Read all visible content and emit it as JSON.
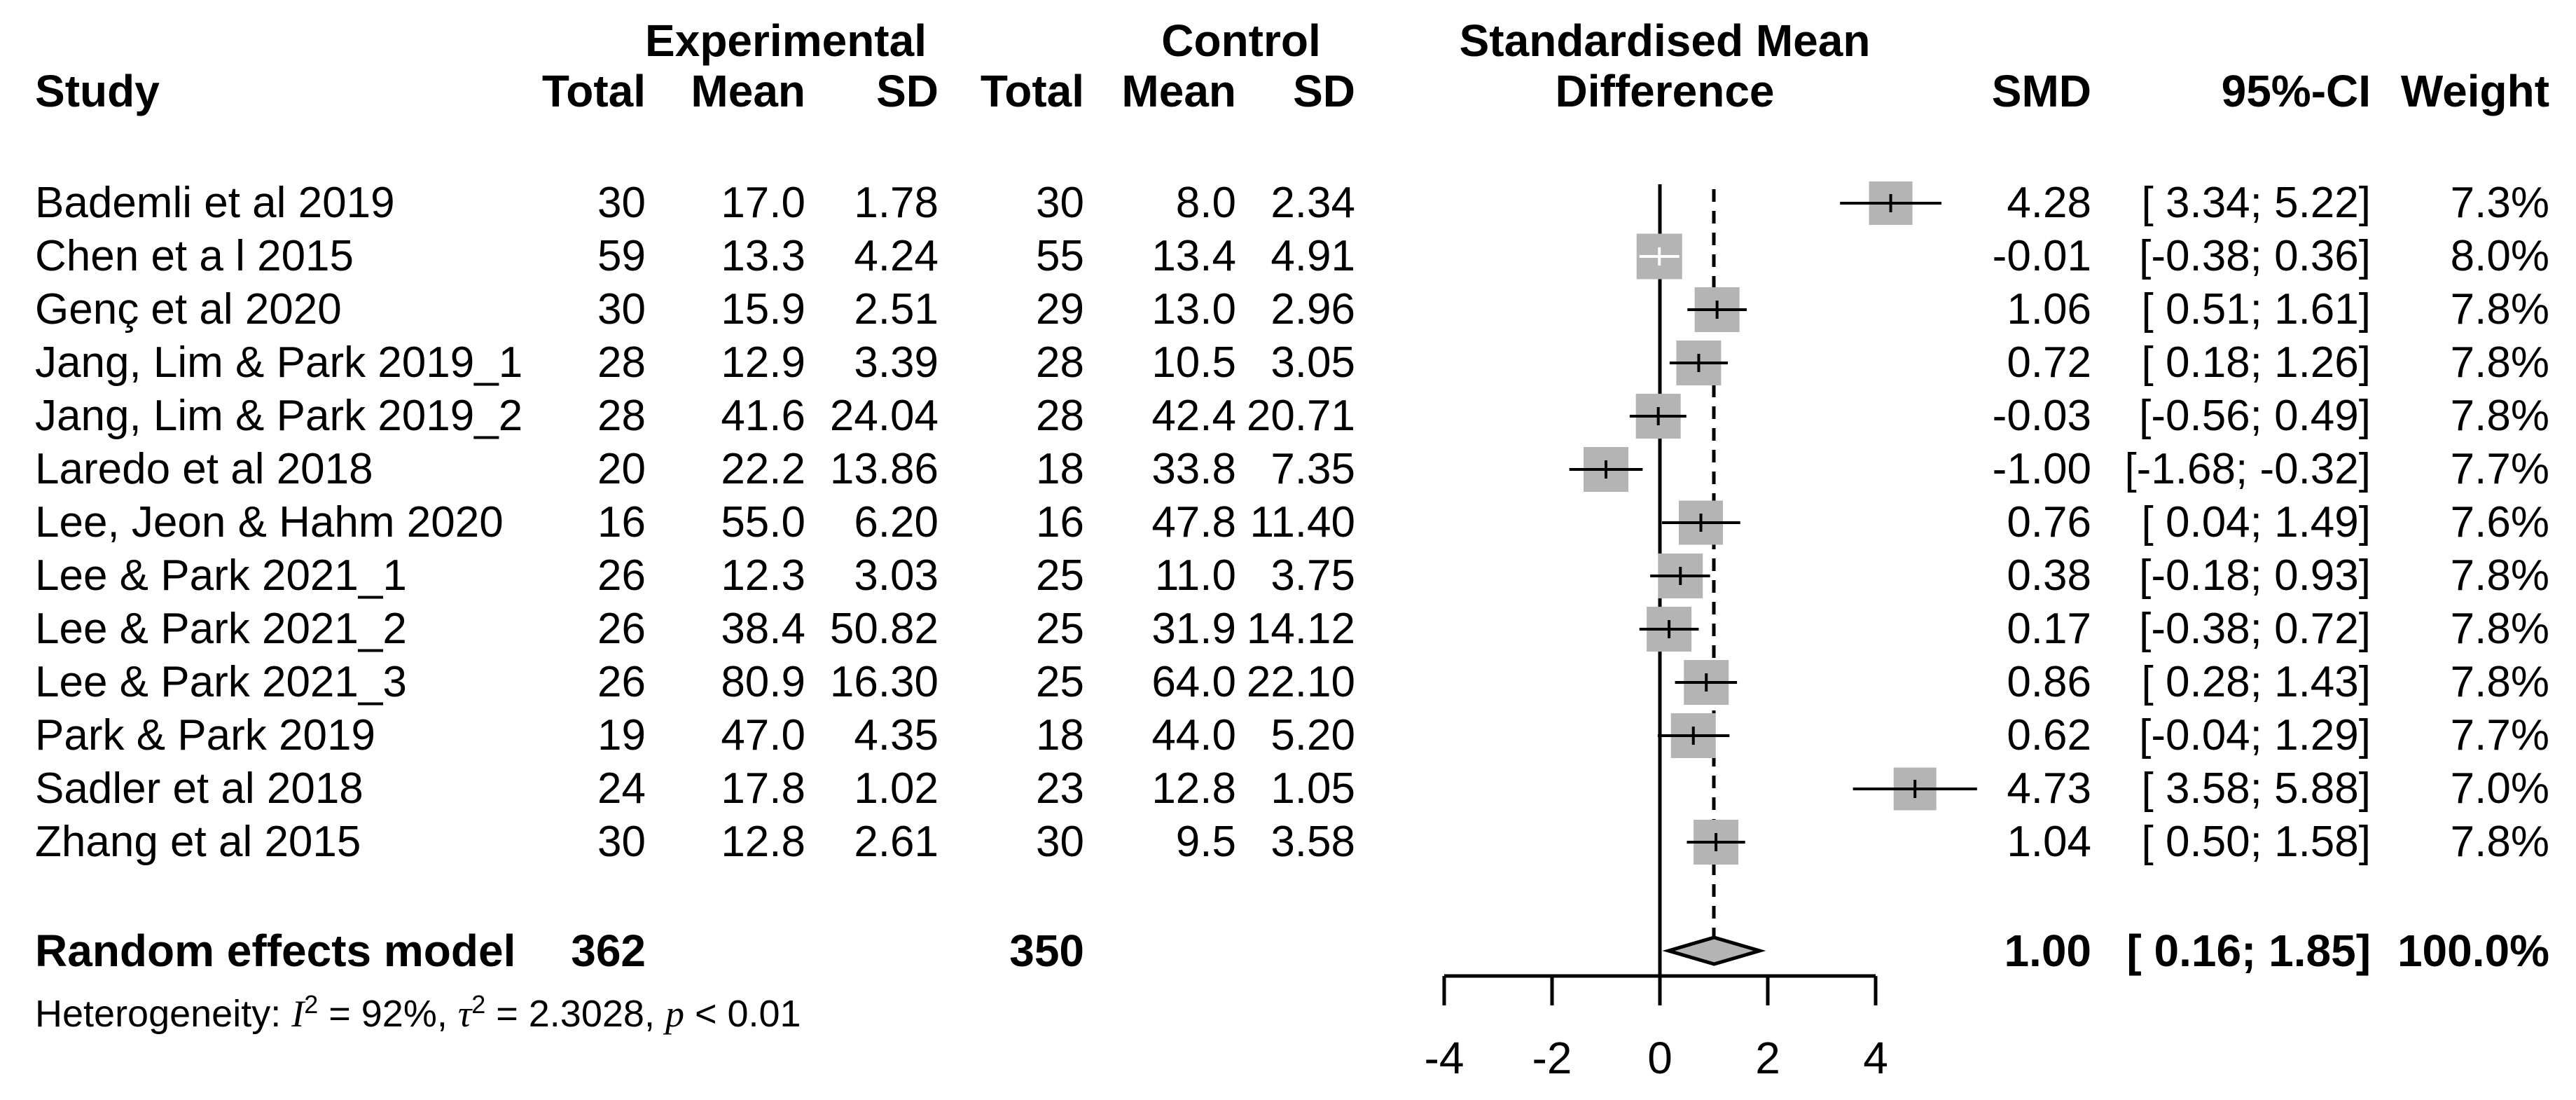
{
  "header": {
    "study": "Study",
    "experimental_group": "Experimental",
    "control_group": "Control",
    "exp_total": "Total",
    "exp_mean": "Mean",
    "exp_sd": "SD",
    "ctrl_total": "Total",
    "ctrl_mean": "Mean",
    "ctrl_sd": "SD",
    "plot_title_1": "Standardised Mean",
    "plot_title_2": "Difference",
    "smd": "SMD",
    "ci": "95%-CI",
    "weight": "Weight"
  },
  "studies": [
    {
      "name": "Bademli et al 2019",
      "exp_total": "30",
      "exp_mean": "17.0",
      "exp_sd": "1.78",
      "ctrl_total": "30",
      "ctrl_mean": "8.0",
      "ctrl_sd": "2.34",
      "smd": 4.28,
      "lower": 3.34,
      "upper": 5.22,
      "weight": 7.3,
      "smd_text": "4.28",
      "ci_text": "[ 3.34; 5.22]",
      "weight_text": "7.3%"
    },
    {
      "name": "Chen et a l 2015",
      "exp_total": "59",
      "exp_mean": "13.3",
      "exp_sd": "4.24",
      "ctrl_total": "55",
      "ctrl_mean": "13.4",
      "ctrl_sd": "4.91",
      "smd": -0.01,
      "lower": -0.38,
      "upper": 0.36,
      "weight": 8.0,
      "smd_text": "-0.01",
      "ci_text": "[-0.38; 0.36]",
      "weight_text": "8.0%"
    },
    {
      "name": "Genç et al 2020",
      "exp_total": "30",
      "exp_mean": "15.9",
      "exp_sd": "2.51",
      "ctrl_total": "29",
      "ctrl_mean": "13.0",
      "ctrl_sd": "2.96",
      "smd": 1.06,
      "lower": 0.51,
      "upper": 1.61,
      "weight": 7.8,
      "smd_text": "1.06",
      "ci_text": "[ 0.51; 1.61]",
      "weight_text": "7.8%"
    },
    {
      "name": "Jang, Lim & Park 2019_1",
      "exp_total": "28",
      "exp_mean": "12.9",
      "exp_sd": "3.39",
      "ctrl_total": "28",
      "ctrl_mean": "10.5",
      "ctrl_sd": "3.05",
      "smd": 0.72,
      "lower": 0.18,
      "upper": 1.26,
      "weight": 7.8,
      "smd_text": "0.72",
      "ci_text": "[ 0.18; 1.26]",
      "weight_text": "7.8%"
    },
    {
      "name": "Jang, Lim & Park 2019_2",
      "exp_total": "28",
      "exp_mean": "41.6",
      "exp_sd": "24.04",
      "ctrl_total": "28",
      "ctrl_mean": "42.4",
      "ctrl_sd": "20.71",
      "smd": -0.03,
      "lower": -0.56,
      "upper": 0.49,
      "weight": 7.8,
      "smd_text": "-0.03",
      "ci_text": "[-0.56; 0.49]",
      "weight_text": "7.8%"
    },
    {
      "name": "Laredo et al 2018",
      "exp_total": "20",
      "exp_mean": "22.2",
      "exp_sd": "13.86",
      "ctrl_total": "18",
      "ctrl_mean": "33.8",
      "ctrl_sd": "7.35",
      "smd": -1.0,
      "lower": -1.68,
      "upper": -0.32,
      "weight": 7.7,
      "smd_text": "-1.00",
      "ci_text": "[-1.68; -0.32]",
      "weight_text": "7.7%"
    },
    {
      "name": "Lee, Jeon & Hahm 2020",
      "exp_total": "16",
      "exp_mean": "55.0",
      "exp_sd": "6.20",
      "ctrl_total": "16",
      "ctrl_mean": "47.8",
      "ctrl_sd": "11.40",
      "smd": 0.76,
      "lower": 0.04,
      "upper": 1.49,
      "weight": 7.6,
      "smd_text": "0.76",
      "ci_text": "[ 0.04; 1.49]",
      "weight_text": "7.6%"
    },
    {
      "name": "Lee & Park 2021_1",
      "exp_total": "26",
      "exp_mean": "12.3",
      "exp_sd": "3.03",
      "ctrl_total": "25",
      "ctrl_mean": "11.0",
      "ctrl_sd": "3.75",
      "smd": 0.38,
      "lower": -0.18,
      "upper": 0.93,
      "weight": 7.8,
      "smd_text": "0.38",
      "ci_text": "[-0.18; 0.93]",
      "weight_text": "7.8%"
    },
    {
      "name": "Lee & Park 2021_2",
      "exp_total": "26",
      "exp_mean": "38.4",
      "exp_sd": "50.82",
      "ctrl_total": "25",
      "ctrl_mean": "31.9",
      "ctrl_sd": "14.12",
      "smd": 0.17,
      "lower": -0.38,
      "upper": 0.72,
      "weight": 7.8,
      "smd_text": "0.17",
      "ci_text": "[-0.38; 0.72]",
      "weight_text": "7.8%"
    },
    {
      "name": "Lee & Park 2021_3",
      "exp_total": "26",
      "exp_mean": "80.9",
      "exp_sd": "16.30",
      "ctrl_total": "25",
      "ctrl_mean": "64.0",
      "ctrl_sd": "22.10",
      "smd": 0.86,
      "lower": 0.28,
      "upper": 1.43,
      "weight": 7.8,
      "smd_text": "0.86",
      "ci_text": "[ 0.28; 1.43]",
      "weight_text": "7.8%"
    },
    {
      "name": "Park & Park 2019",
      "exp_total": "19",
      "exp_mean": "47.0",
      "exp_sd": "4.35",
      "ctrl_total": "18",
      "ctrl_mean": "44.0",
      "ctrl_sd": "5.20",
      "smd": 0.62,
      "lower": -0.04,
      "upper": 1.29,
      "weight": 7.7,
      "smd_text": "0.62",
      "ci_text": "[-0.04; 1.29]",
      "weight_text": "7.7%"
    },
    {
      "name": "Sadler et al 2018",
      "exp_total": "24",
      "exp_mean": "17.8",
      "exp_sd": "1.02",
      "ctrl_total": "23",
      "ctrl_mean": "12.8",
      "ctrl_sd": "1.05",
      "smd": 4.73,
      "lower": 3.58,
      "upper": 5.88,
      "weight": 7.0,
      "smd_text": "4.73",
      "ci_text": "[ 3.58; 5.88]",
      "weight_text": "7.0%"
    },
    {
      "name": "Zhang et al 2015",
      "exp_total": "30",
      "exp_mean": "12.8",
      "exp_sd": "2.61",
      "ctrl_total": "30",
      "ctrl_mean": "9.5",
      "ctrl_sd": "3.58",
      "smd": 1.04,
      "lower": 0.5,
      "upper": 1.58,
      "weight": 7.8,
      "smd_text": "1.04",
      "ci_text": "[ 0.50; 1.58]",
      "weight_text": "7.8%"
    }
  ],
  "summary": {
    "label": "Random effects model",
    "exp_total": "362",
    "ctrl_total": "350",
    "smd": 1.0,
    "lower": 0.16,
    "upper": 1.85,
    "smd_text": "1.00",
    "ci_text": "[ 0.16; 1.85]",
    "weight_text": "100.0%"
  },
  "heterogeneity": {
    "prefix": "Heterogeneity: ",
    "i_label": "I",
    "i_sup": "2",
    "i_value": " = 92%, ",
    "tau_label": "τ",
    "tau_sup": "2",
    "tau_value": " = 2.3028, ",
    "p_label": "p",
    "p_value": " < 0.01"
  },
  "axis": {
    "tick_labels": [
      "-4",
      "-2",
      "0",
      "2",
      "4"
    ],
    "tick_values": [
      -4,
      -2,
      0,
      2,
      4
    ],
    "zero_line": 0,
    "dashed_line_at": 1.0
  },
  "colors": {
    "square": "#b4b4b4",
    "diamond_fill": "#b4b4b4",
    "line": "#000000",
    "white_marker": "#ffffff"
  },
  "chart_data": {
    "type": "scatter",
    "subtype": "forest-plot-meta-analysis",
    "title": "Standardised Mean Difference",
    "legend_position": "none",
    "grid": false,
    "xlim": [
      -4,
      5.88
    ],
    "x_ticks": [
      -4,
      -2,
      0,
      2,
      4
    ],
    "reference_lines": [
      {
        "x": 0,
        "style": "solid"
      },
      {
        "x": 1.0,
        "style": "dashed"
      }
    ],
    "categories": [
      "Bademli et al 2019",
      "Chen et a l 2015",
      "Genç et al 2020",
      "Jang, Lim & Park 2019_1",
      "Jang, Lim & Park 2019_2",
      "Laredo et al 2018",
      "Lee, Jeon & Hahm 2020",
      "Lee & Park 2021_1",
      "Lee & Park 2021_2",
      "Lee & Park 2021_3",
      "Park & Park 2019",
      "Sadler et al 2018",
      "Zhang et al 2015"
    ],
    "series": [
      {
        "name": "SMD",
        "values": [
          4.28,
          -0.01,
          1.06,
          0.72,
          -0.03,
          -1.0,
          0.76,
          0.38,
          0.17,
          0.86,
          0.62,
          4.73,
          1.04
        ]
      },
      {
        "name": "CI lower",
        "values": [
          3.34,
          -0.38,
          0.51,
          0.18,
          -0.56,
          -1.68,
          0.04,
          -0.18,
          -0.38,
          0.28,
          -0.04,
          3.58,
          0.5
        ]
      },
      {
        "name": "CI upper",
        "values": [
          5.22,
          0.36,
          1.61,
          1.26,
          0.49,
          -0.32,
          1.49,
          0.93,
          0.72,
          1.43,
          1.29,
          5.88,
          1.58
        ]
      },
      {
        "name": "Weight %",
        "values": [
          7.3,
          8.0,
          7.8,
          7.8,
          7.8,
          7.7,
          7.6,
          7.8,
          7.8,
          7.8,
          7.7,
          7.0,
          7.8
        ]
      }
    ],
    "summary_diamond": {
      "center": 1.0,
      "lower": 0.16,
      "upper": 1.85,
      "weight_pct": 100.0
    }
  }
}
